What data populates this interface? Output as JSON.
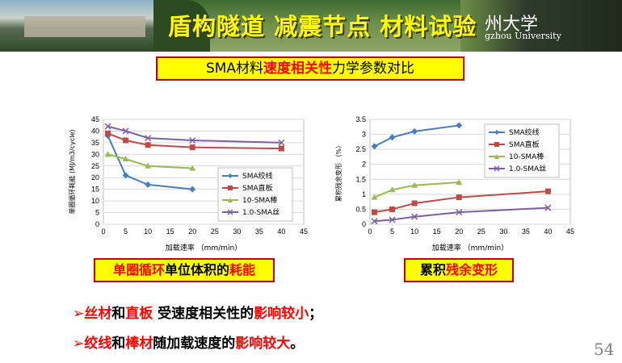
{
  "header": {
    "title": "盾构隧道 减震节点 材料试验",
    "university_cn": "州大学",
    "university_en": "gzhou University"
  },
  "subtitle": {
    "part1": "SMA材料",
    "part2": "速度相关性",
    "part3": "力学参数对比"
  },
  "chart_data": [
    {
      "type": "line",
      "title": "",
      "xlabel": "加载速率 （mm/min）",
      "ylabel": "单圈循环耗能 (MJ/m3/cycle)",
      "xlim": [
        0,
        45
      ],
      "ylim": [
        0,
        45
      ],
      "xticks": [
        "0",
        "5",
        "10",
        "15",
        "20",
        "25",
        "30",
        "35",
        "40",
        "45"
      ],
      "yticks": [
        "0",
        "5",
        "10",
        "15",
        "20",
        "25",
        "30",
        "35",
        "40",
        "45"
      ],
      "legend_position": "right",
      "series": [
        {
          "name": "SMA绞线",
          "color": "#4a7ebb",
          "marker": "diamond",
          "x": [
            1,
            5,
            10,
            20
          ],
          "y": [
            38,
            21,
            17,
            15
          ]
        },
        {
          "name": "SMA直板",
          "color": "#be4b48",
          "marker": "square",
          "x": [
            1,
            5,
            10,
            20,
            40
          ],
          "y": [
            39,
            36,
            34,
            33,
            32.5
          ]
        },
        {
          "name": "10-SMA棒",
          "color": "#98b954",
          "marker": "triangle",
          "x": [
            1,
            5,
            10,
            20
          ],
          "y": [
            30,
            28,
            25,
            24
          ]
        },
        {
          "name": "1.0-SMA丝",
          "color": "#7d60a0",
          "marker": "x",
          "x": [
            1,
            5,
            10,
            20,
            40
          ],
          "y": [
            42,
            40,
            37,
            36,
            35
          ]
        }
      ]
    },
    {
      "type": "line",
      "title": "",
      "xlabel": "加载速率 （mm/min）",
      "ylabel": "累积残余变形 （%）",
      "xlim": [
        0,
        45
      ],
      "ylim": [
        0,
        3.5
      ],
      "xticks": [
        "0",
        "5",
        "10",
        "15",
        "20",
        "25",
        "30",
        "35",
        "40",
        "45"
      ],
      "yticks": [
        "0",
        "0.5",
        "1",
        "1.5",
        "2",
        "2.5",
        "3",
        "3.5"
      ],
      "legend_position": "right",
      "series": [
        {
          "name": "SMA绞线",
          "color": "#4a7ebb",
          "marker": "diamond",
          "x": [
            1,
            5,
            10,
            20
          ],
          "y": [
            2.6,
            2.9,
            3.1,
            3.3
          ]
        },
        {
          "name": "SMA直板",
          "color": "#be4b48",
          "marker": "square",
          "x": [
            1,
            5,
            10,
            20,
            40
          ],
          "y": [
            0.4,
            0.5,
            0.7,
            0.9,
            1.1
          ]
        },
        {
          "name": "10-SMA棒",
          "color": "#98b954",
          "marker": "triangle",
          "x": [
            1,
            5,
            10,
            20
          ],
          "y": [
            0.9,
            1.15,
            1.3,
            1.4
          ]
        },
        {
          "name": "1.0-SMA丝",
          "color": "#7d60a0",
          "marker": "x",
          "x": [
            1,
            5,
            10,
            20,
            40
          ],
          "y": [
            0.1,
            0.15,
            0.25,
            0.4,
            0.55
          ]
        }
      ]
    }
  ],
  "captions": {
    "left": {
      "p1": "单圈循环",
      "p2": "单位体积的",
      "p3": "耗能"
    },
    "right": {
      "p1": "累积",
      "p2": "残余变形"
    }
  },
  "bullets": [
    {
      "arrow": "➢",
      "t1": "丝材",
      "t2": "和",
      "t3": "直板",
      "t4": " 受速度相关性的",
      "t5": "影响较小",
      "t6": "；"
    },
    {
      "arrow": "➢",
      "t1": "绞线",
      "t2": "和",
      "t3": "棒材",
      "t4": "随加载速度的",
      "t5": "影响较大",
      "t6": "。"
    }
  ],
  "page_number": "54"
}
